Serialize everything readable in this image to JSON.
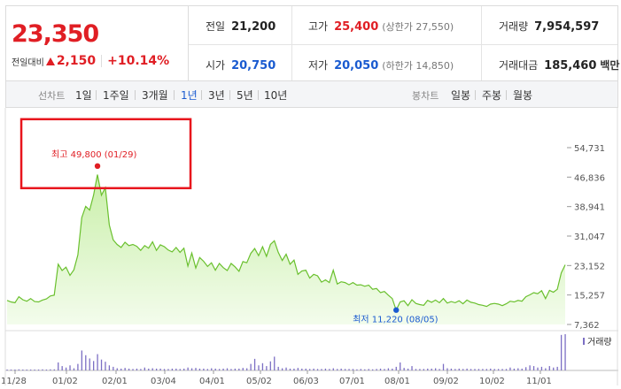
{
  "header": {
    "price": "23,350",
    "change_label": "전일대비",
    "change_value": "2,150",
    "change_pct": "+10.14%",
    "stats": {
      "prev_close_label": "전일",
      "prev_close": "21,200",
      "high_label": "고가",
      "high": "25,400",
      "upper_limit": "(상한가 27,550)",
      "volume_label": "거래량",
      "volume": "7,954,597",
      "open_label": "시가",
      "open": "20,750",
      "low_label": "저가",
      "low": "20,050",
      "lower_limit": "(하한가 14,850)",
      "amount_label": "거래대금",
      "amount": "185,460",
      "amount_unit": "백만"
    }
  },
  "tabs": {
    "line_label": "선차트",
    "line_tabs": [
      "1일",
      "1주일",
      "3개월",
      "1년",
      "3년",
      "5년",
      "10년"
    ],
    "active_line_tab": "1년",
    "candle_label": "봉차트",
    "candle_tabs": [
      "일봉",
      "주봉",
      "월봉"
    ]
  },
  "colors": {
    "up": "#e01e24",
    "down": "#1a5bd0",
    "line": "#6ac02e",
    "volume": "#7c6fc4",
    "highlight_box": "#e8141c"
  },
  "chart_data": {
    "type": "area",
    "x_tick_labels": [
      "11/28",
      "01/02",
      "02/01",
      "03/04",
      "04/01",
      "05/02",
      "06/03",
      "07/01",
      "08/01",
      "09/02",
      "10/02",
      "11/01"
    ],
    "y_tick_labels": [
      "54,731",
      "46,836",
      "38,941",
      "31,047",
      "23,152",
      "15,257",
      "7,362"
    ],
    "ylim": [
      7362,
      54731
    ],
    "price_series": [
      13800,
      13400,
      13200,
      14800,
      14000,
      13600,
      14300,
      13500,
      13400,
      13900,
      14200,
      15000,
      15200,
      23500,
      21800,
      22700,
      20500,
      22000,
      26000,
      36000,
      39000,
      38000,
      42000,
      47500,
      42000,
      44000,
      34000,
      30000,
      28800,
      28000,
      29400,
      28500,
      28800,
      28300,
      27200,
      28500,
      27800,
      29500,
      27200,
      28700,
      28200,
      27300,
      26800,
      28000,
      26700,
      27800,
      23000,
      26500,
      22500,
      25300,
      24300,
      22900,
      23900,
      21900,
      23700,
      22600,
      21800,
      23700,
      22800,
      21600,
      24200,
      23900,
      26400,
      27700,
      25800,
      28200,
      25600,
      28800,
      29800,
      26700,
      24500,
      26200,
      23500,
      24600,
      20800,
      21700,
      21900,
      19800,
      20800,
      20400,
      18700,
      19300,
      18600,
      21900,
      18200,
      18800,
      18600,
      18000,
      18600,
      17900,
      18000,
      17600,
      17900,
      16800,
      17000,
      15900,
      16200,
      15200,
      14300,
      11200,
      13400,
      13700,
      12400,
      14000,
      13000,
      12700,
      12500,
      13800,
      13300,
      13900,
      13200,
      14300,
      13100,
      13500,
      13200,
      13700,
      12900,
      13900,
      13300,
      13100,
      12700,
      12500,
      12200,
      12800,
      13000,
      12800,
      12400,
      12900,
      13600,
      13400,
      13800,
      13600,
      14800,
      15300,
      15900,
      15600,
      16400,
      14300,
      16500,
      16000,
      16800,
      21200,
      23350
    ],
    "volume_series": [
      0.02,
      0.02,
      0.02,
      0.03,
      0.02,
      0.02,
      0.02,
      0.02,
      0.02,
      0.03,
      0.02,
      0.03,
      0.03,
      0.22,
      0.12,
      0.08,
      0.14,
      0.06,
      0.18,
      0.55,
      0.42,
      0.33,
      0.26,
      0.45,
      0.3,
      0.24,
      0.14,
      0.1,
      0.06,
      0.05,
      0.07,
      0.05,
      0.04,
      0.05,
      0.04,
      0.08,
      0.05,
      0.06,
      0.05,
      0.05,
      0.04,
      0.04,
      0.05,
      0.05,
      0.04,
      0.05,
      0.08,
      0.06,
      0.07,
      0.05,
      0.05,
      0.04,
      0.06,
      0.05,
      0.04,
      0.05,
      0.06,
      0.04,
      0.05,
      0.05,
      0.07,
      0.06,
      0.18,
      0.32,
      0.14,
      0.2,
      0.12,
      0.25,
      0.38,
      0.1,
      0.06,
      0.08,
      0.05,
      0.05,
      0.07,
      0.05,
      0.05,
      0.04,
      0.05,
      0.04,
      0.04,
      0.05,
      0.04,
      0.06,
      0.04,
      0.05,
      0.04,
      0.04,
      0.04,
      0.03,
      0.04,
      0.03,
      0.04,
      0.03,
      0.04,
      0.05,
      0.04,
      0.06,
      0.05,
      0.1,
      0.22,
      0.07,
      0.05,
      0.12,
      0.04,
      0.04,
      0.04,
      0.05,
      0.05,
      0.06,
      0.04,
      0.18,
      0.06,
      0.05,
      0.04,
      0.05,
      0.04,
      0.05,
      0.04,
      0.04,
      0.04,
      0.04,
      0.04,
      0.05,
      0.04,
      0.04,
      0.04,
      0.04,
      0.08,
      0.05,
      0.06,
      0.05,
      0.09,
      0.14,
      0.12,
      0.08,
      0.1,
      0.06,
      0.12,
      0.08,
      0.1,
      0.98,
      1.0
    ],
    "high_annotation": "최고 49,800 (01/29)",
    "low_annotation": "최저 11,220 (08/05)",
    "high_value": 49800,
    "low_value": 11220,
    "volume_legend": "거래량",
    "grid": false
  }
}
